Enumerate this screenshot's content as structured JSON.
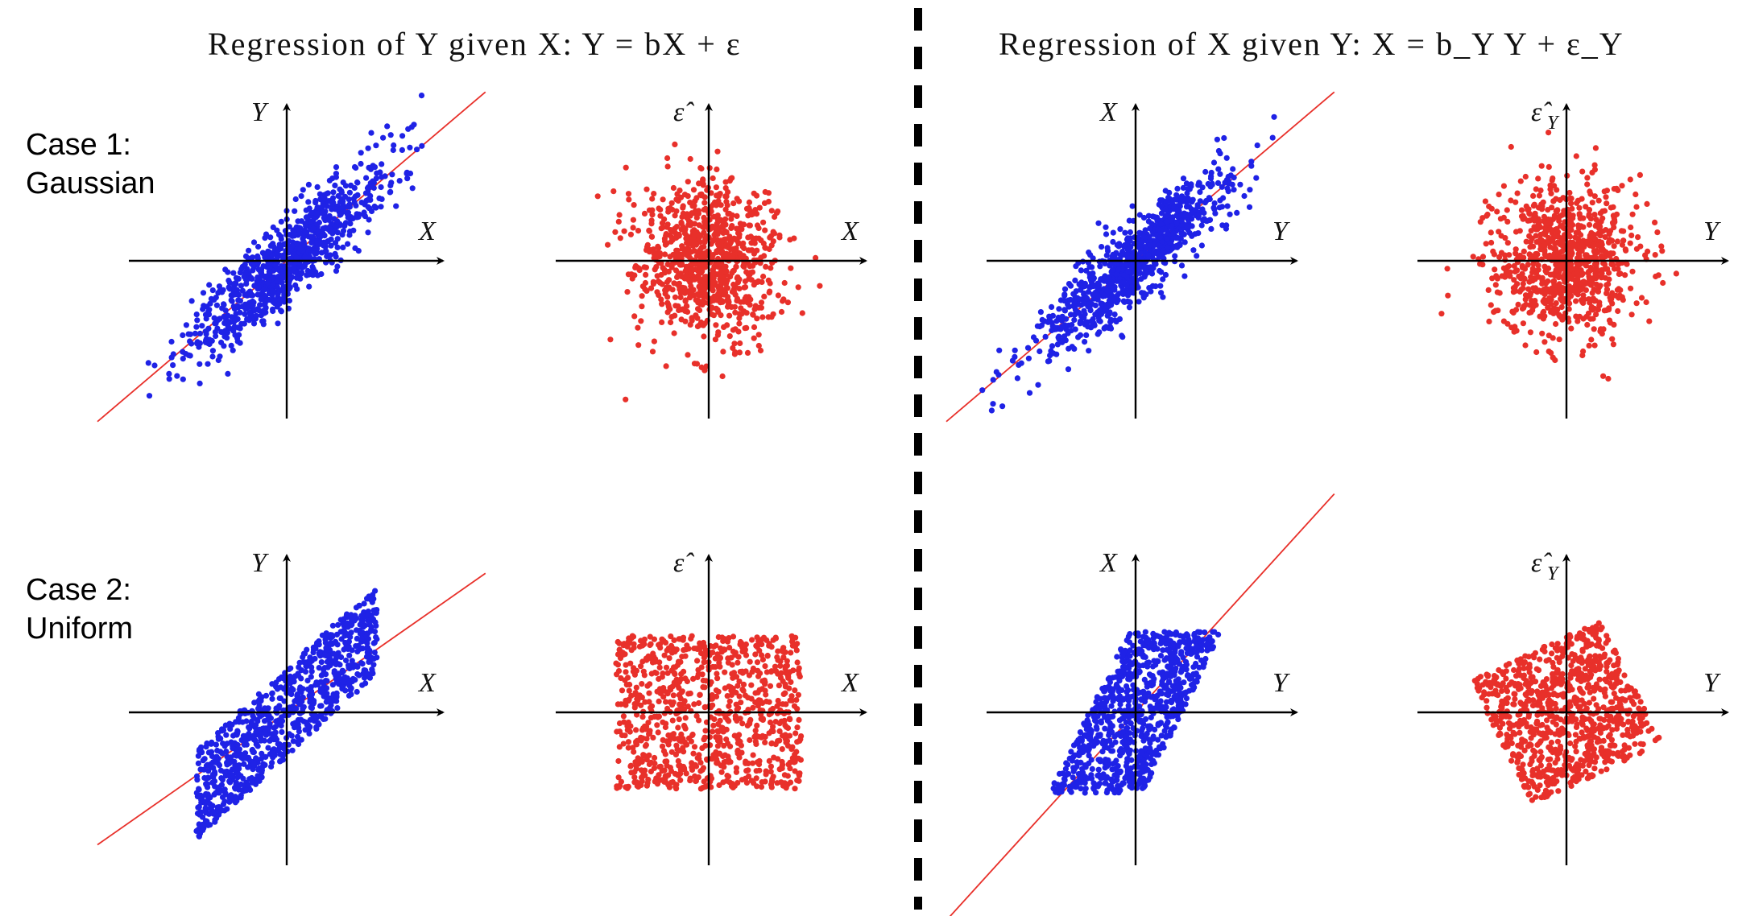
{
  "headers": {
    "left": "Regression of Y given X: Y = bX + ε",
    "right": "Regression of X given Y: X = b_Y Y + ε_Y"
  },
  "rows": [
    {
      "case_label_line1": "Case 1:",
      "case_label_line2": "Gaussian"
    },
    {
      "case_label_line1": "Case 2:",
      "case_label_line2": "Uniform"
    }
  ],
  "colors": {
    "data_points": "#1f22e6",
    "residual_points": "#e8302a",
    "fit_line": "#e8302a",
    "axes": "#000000"
  },
  "chart_data": [
    {
      "id": "case1-y-given-x",
      "type": "scatter",
      "distribution": "gaussian",
      "x_label": "X",
      "y_label": "Y",
      "regression_slope": 0.85,
      "n_points": 900,
      "series": [
        {
          "values": "raw data"
        }
      ],
      "fit_line": true
    },
    {
      "id": "case1-residual-y",
      "type": "scatter",
      "distribution": "gaussian",
      "x_label": "X",
      "y_label": "ε̂",
      "n_points": 900,
      "series": [
        {
          "values": "residuals"
        }
      ]
    },
    {
      "id": "case1-x-given-y",
      "type": "scatter",
      "distribution": "gaussian",
      "x_label": "Y",
      "y_label": "X",
      "regression_slope": 0.85,
      "n_points": 900,
      "series": [
        {
          "values": "raw data"
        }
      ],
      "fit_line": true
    },
    {
      "id": "case1-residual-x",
      "type": "scatter",
      "distribution": "gaussian",
      "x_label": "Y",
      "y_label": "ε̂",
      "y_label_sub": "Y",
      "n_points": 900,
      "series": [
        {
          "values": "residuals"
        }
      ]
    },
    {
      "id": "case2-y-given-x",
      "type": "scatter",
      "distribution": "uniform",
      "x_label": "X",
      "y_label": "Y",
      "regression_slope": 0.7,
      "n_points": 900,
      "series": [
        {
          "values": "raw data"
        }
      ],
      "fit_line": true
    },
    {
      "id": "case2-residual-y",
      "type": "scatter",
      "distribution": "uniform",
      "x_label": "X",
      "y_label": "ε̂",
      "n_points": 900,
      "series": [
        {
          "values": "residuals"
        }
      ]
    },
    {
      "id": "case2-x-given-y",
      "type": "scatter",
      "distribution": "uniform",
      "x_label": "Y",
      "y_label": "X",
      "regression_slope": 1.1,
      "n_points": 900,
      "series": [
        {
          "values": "raw data"
        }
      ],
      "fit_line": true
    },
    {
      "id": "case2-residual-x",
      "type": "scatter",
      "distribution": "uniform",
      "x_label": "Y",
      "y_label": "ε̂",
      "y_label_sub": "Y",
      "n_points": 900,
      "series": [
        {
          "values": "residuals"
        }
      ]
    }
  ]
}
